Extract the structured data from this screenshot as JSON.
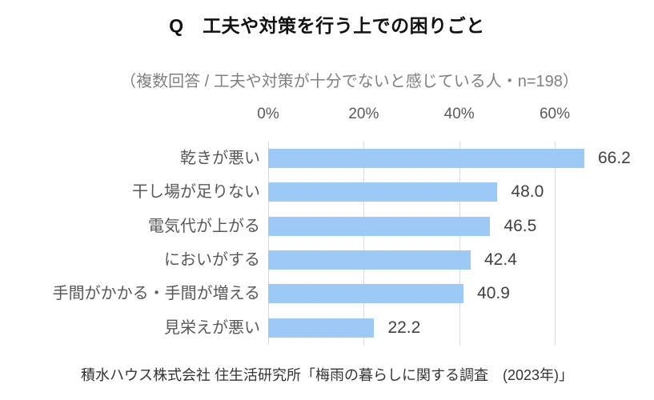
{
  "chart_data": {
    "type": "bar",
    "orientation": "horizontal",
    "title": "Q　工夫や対策を行う上での困りごと",
    "subtitle": "（複数回答 / 工夫や対策が十分でないと感じている人・n=198）",
    "categories": [
      "乾きが悪い",
      "干し場が足りない",
      "電気代が上がる",
      "においがする",
      "手間がかかる・手間が増える",
      "見栄えが悪い"
    ],
    "values": [
      66.2,
      48.0,
      46.5,
      42.4,
      40.9,
      22.2
    ],
    "value_labels": [
      "66.2",
      "48.0",
      "46.5",
      "42.4",
      "40.9",
      "22.2"
    ],
    "x_ticks": [
      "0%",
      "20%",
      "40%",
      "60%"
    ],
    "x_tick_values": [
      0,
      20,
      40,
      60
    ],
    "xlim": [
      0,
      72
    ],
    "grid": true,
    "legend": "none",
    "bar_color": "#9CC9F5",
    "gridline_color": "#D9D9D9"
  },
  "footer": {
    "source": "積水ハウス株式会社 住生活研究所「梅雨の暮らしに関する調査　(2023年)」"
  }
}
